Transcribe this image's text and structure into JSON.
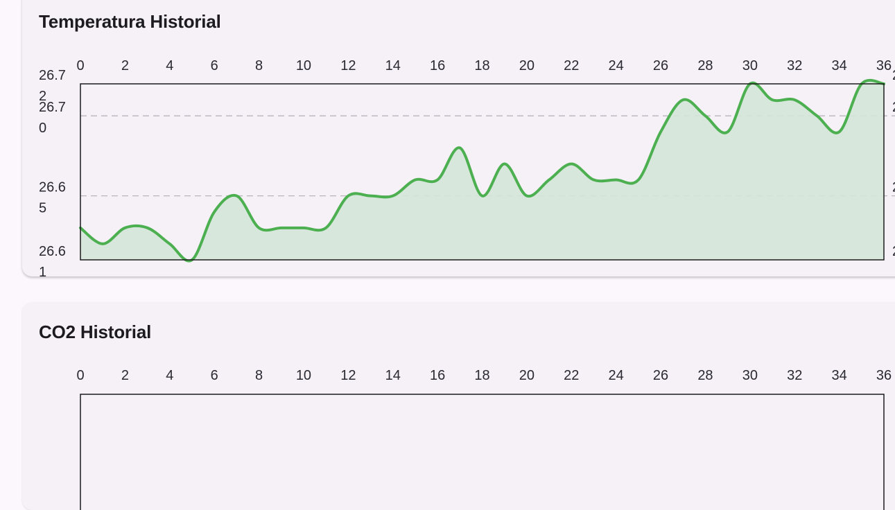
{
  "colors": {
    "page_bg": "#fcf7fc",
    "card_bg": "#f5f1f7",
    "line": "#4caf50",
    "area": "#d4e6d8",
    "grid": "#b8b4bc"
  },
  "temperature_card": {
    "title": "Temperatura Historial"
  },
  "co2_card": {
    "title": "CO2 Historial"
  },
  "chart_data": [
    {
      "type": "area",
      "title": "Temperatura Historial",
      "xlabel": "",
      "ylabel": "",
      "x_ticks": [
        "0",
        "2",
        "4",
        "6",
        "8",
        "10",
        "12",
        "14",
        "16",
        "18",
        "20",
        "22",
        "24",
        "26",
        "28",
        "30",
        "32",
        "34",
        "36"
      ],
      "y_ticks": [
        {
          "value": 26.72,
          "label": "26.72"
        },
        {
          "value": 26.7,
          "label": "26.70"
        },
        {
          "value": 26.65,
          "label": "26.65"
        },
        {
          "value": 26.61,
          "label": "26.61"
        }
      ],
      "xlim": [
        0,
        36
      ],
      "ylim": [
        26.61,
        26.72
      ],
      "grid": "horizontal dashed",
      "series": [
        {
          "x": [
            0,
            1,
            2,
            3,
            4,
            5,
            6,
            7,
            8,
            9,
            10,
            11,
            12,
            13,
            14,
            15,
            16,
            17,
            18,
            19,
            20,
            21,
            22,
            23,
            24,
            25,
            26,
            27,
            28,
            29,
            30,
            31,
            32,
            33,
            34,
            35,
            36
          ],
          "values": [
            26.63,
            26.62,
            26.63,
            26.63,
            26.62,
            26.61,
            26.64,
            26.65,
            26.63,
            26.63,
            26.63,
            26.63,
            26.65,
            26.65,
            26.65,
            26.66,
            26.66,
            26.68,
            26.65,
            26.67,
            26.65,
            26.66,
            26.67,
            26.66,
            26.66,
            26.66,
            26.69,
            26.71,
            26.7,
            26.69,
            26.72,
            26.71,
            26.71,
            26.7,
            26.69,
            26.72,
            26.72
          ]
        }
      ]
    },
    {
      "type": "line",
      "title": "CO2 Historial",
      "x_ticks": [
        "0",
        "2",
        "4",
        "6",
        "8",
        "10",
        "12",
        "14",
        "16",
        "18",
        "20",
        "22",
        "24",
        "26",
        "28",
        "30",
        "32",
        "34",
        "36"
      ],
      "xlim": [
        0,
        36
      ],
      "series": []
    }
  ]
}
